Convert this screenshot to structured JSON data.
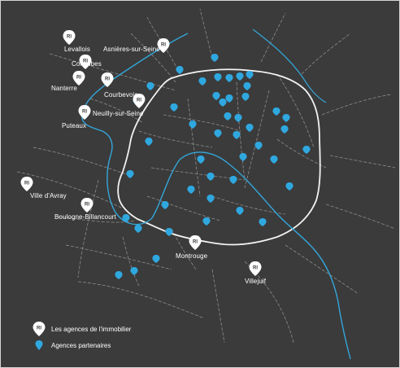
{
  "colors": {
    "background": "#3b3b3b",
    "boundary": "#f2f2f2",
    "river": "#33a6d9",
    "streets": "#9b9b9b",
    "agency_pin": "#ffffff",
    "partner_pin": "#2fa8e0"
  },
  "agencies": [
    {
      "name": "Levallois",
      "icon": "agency-pin-icon"
    },
    {
      "name": "Asnières-sur-Seine",
      "icon": "agency-pin-icon"
    },
    {
      "name": "Colombes",
      "icon": "agency-pin-icon"
    },
    {
      "name": "Nanterre",
      "icon": "agency-pin-icon"
    },
    {
      "name": "Courbevoie",
      "icon": "agency-pin-icon"
    },
    {
      "name": "Neuilly-sur-Seine",
      "icon": "agency-pin-icon"
    },
    {
      "name": "Puteaux",
      "icon": "agency-pin-icon"
    },
    {
      "name": "Ville d'Avray",
      "icon": "agency-pin-icon"
    },
    {
      "name": "Boulogne-Billancourt",
      "icon": "agency-pin-icon"
    },
    {
      "name": "Montrouge",
      "icon": "agency-pin-icon"
    },
    {
      "name": "Villejuif",
      "icon": "agency-pin-icon"
    }
  ],
  "partner_agencies": {
    "icon": "partner-pin-icon"
  },
  "legend": {
    "agency_label": "Les agences de l'immobilier",
    "partner_label": "Agences partenaires",
    "agency_icon": "agency-pin-icon",
    "partner_icon": "partner-pin-icon"
  }
}
